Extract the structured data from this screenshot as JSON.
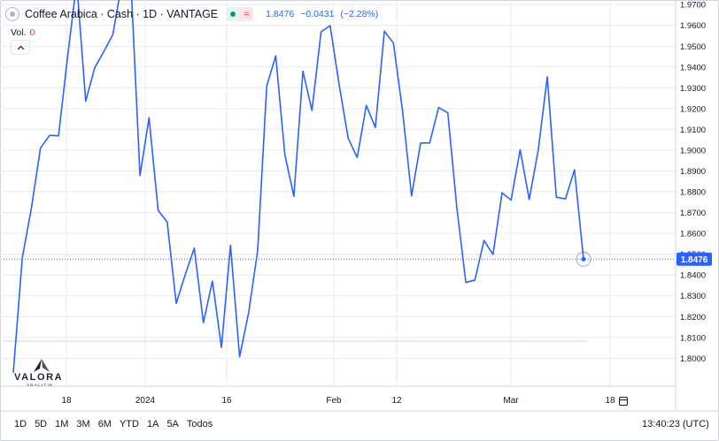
{
  "header": {
    "title": "Coffee Arabica · Cash · 1D · VANTAGE",
    "badge_symbol": "≈",
    "last": "1.8476",
    "change": "−0.0431",
    "change_pct": "(−2.28%)"
  },
  "volume": {
    "label": "Vol.",
    "value": "0"
  },
  "logo": {
    "name": "VALORA",
    "tagline": "ANALITIK"
  },
  "price_label": "1.8476",
  "time_ranges": [
    "1D",
    "5D",
    "1M",
    "3M",
    "6M",
    "YTD",
    "1A",
    "5A",
    "Todos"
  ],
  "clock": "13:40:23 (UTC)",
  "colors": {
    "line": "#2962ff",
    "price_tag": "#2962ff",
    "grid": "#e8eaee",
    "down": "#f23645",
    "up": "#089981"
  },
  "icons": [
    "symbol-icon",
    "collapse-chevron-icon",
    "valora-logo-icon",
    "calendar-icon"
  ],
  "chart_data": {
    "type": "line",
    "y_axis_ticks": [
      "1.9700",
      "1.9600",
      "1.9500",
      "1.9400",
      "1.9300",
      "1.9200",
      "1.9100",
      "1.9000",
      "1.8900",
      "1.8800",
      "1.8700",
      "1.8600",
      "1.8500",
      "1.8400",
      "1.8300",
      "1.8200",
      "1.8100",
      "1.8000"
    ],
    "x_axis_labels": [
      "18",
      "2024",
      "16",
      "Feb",
      "12",
      "Mar",
      "18"
    ],
    "ylim": [
      1.7925,
      1.9705
    ],
    "y_axis_side": "right",
    "grid": true,
    "current_value": 1.8476,
    "series": [
      {
        "values": [
          1.793,
          1.8483,
          1.872,
          1.901,
          1.9071,
          1.9069,
          1.9448,
          2.01,
          1.9236,
          1.9396,
          1.9474,
          1.9555,
          2.0,
          2.0,
          1.8878,
          1.9156,
          1.8711,
          1.8655,
          1.8263,
          1.8402,
          1.8529,
          1.8171,
          1.8371,
          1.8052,
          1.8543,
          1.8007,
          1.8219,
          1.8517,
          1.9308,
          1.9454,
          1.8978,
          1.8778,
          1.938,
          1.9191,
          1.9569,
          1.9599,
          1.9315,
          1.9058,
          1.8965,
          1.9215,
          1.9109,
          1.9572,
          1.9515,
          1.919,
          1.878,
          1.9034,
          1.9035,
          1.9205,
          1.918,
          1.8725,
          1.8364,
          1.8376,
          1.8566,
          1.8499,
          1.8795,
          1.876,
          1.9002,
          1.8763,
          1.9002,
          1.9352,
          1.8774,
          1.8766,
          1.8906,
          1.8476
        ]
      }
    ]
  }
}
